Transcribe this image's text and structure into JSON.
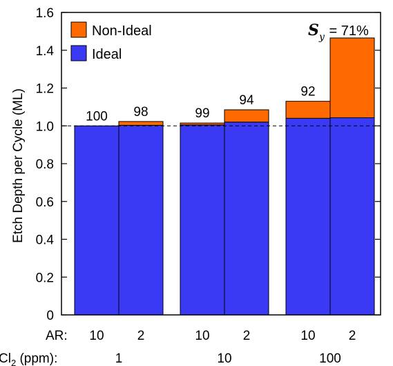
{
  "chart_data": {
    "type": "bar",
    "stacked": true,
    "ylabel": "Etch Depth per Cycle (ML)",
    "ylim": [
      0,
      1.6
    ],
    "yticks": [
      "0",
      "0.2",
      "0.4",
      "0.6",
      "0.8",
      "1.0",
      "1.2",
      "1.4",
      "1.6"
    ],
    "reference_line": 1.0,
    "legend": {
      "placement": "top-left",
      "entries": [
        {
          "name": "Non-Ideal",
          "color": "#ff6a00"
        },
        {
          "name": "Ideal",
          "color": "#3a3af5"
        }
      ]
    },
    "annotation": {
      "symbol": "S",
      "subscript": "y",
      "text": " = 71%"
    },
    "x_axis_labels": {
      "ar_label": "AR:",
      "cl2_label_prefix": "Cl",
      "cl2_label_sub": "2",
      "cl2_label_suffix": " (ppm):"
    },
    "groups": [
      {
        "cl2": "1",
        "bars": [
          {
            "ar": "10",
            "ideal": 1.0,
            "total": 1.0,
            "label": "100"
          },
          {
            "ar": "2",
            "ideal": 1.003,
            "total": 1.023,
            "label": "98"
          }
        ]
      },
      {
        "cl2": "10",
        "bars": [
          {
            "ar": "10",
            "ideal": 1.005,
            "total": 1.015,
            "label": "99"
          },
          {
            "ar": "2",
            "ideal": 1.02,
            "total": 1.085,
            "label": "94"
          }
        ]
      },
      {
        "cl2": "100",
        "bars": [
          {
            "ar": "10",
            "ideal": 1.04,
            "total": 1.13,
            "label": "92"
          },
          {
            "ar": "2",
            "ideal": 1.043,
            "total": 1.465,
            "label": "71"
          }
        ]
      }
    ],
    "colors": {
      "ideal": "#3a3af5",
      "nonideal": "#ff6a00",
      "axis": "#000000"
    }
  }
}
